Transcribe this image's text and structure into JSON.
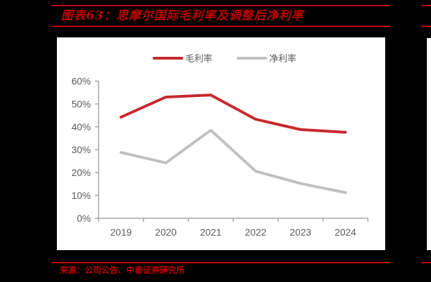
{
  "header": {
    "title": "图表63：思摩尔国际毛利率及调整后净利率"
  },
  "footer": {
    "source": "来源：公司公告、中泰证券研究所"
  },
  "colors": {
    "accent_red": "#C00000",
    "series_gross": "#C8282D",
    "series_net": "#C0C0C0",
    "axis": "#A6A6A6",
    "text": "#595959"
  },
  "chart_data": {
    "type": "line",
    "title": "思摩尔国际毛利率及调整后净利率",
    "xlabel": "",
    "ylabel": "",
    "categories": [
      "2019",
      "2020",
      "2021",
      "2022",
      "2023",
      "2024"
    ],
    "series": [
      {
        "name": "毛利率",
        "color": "#C8282D",
        "values": [
          44.2,
          53.0,
          53.9,
          43.3,
          38.8,
          37.6
        ]
      },
      {
        "name": "净利率",
        "color": "#C0C0C0",
        "values": [
          28.8,
          24.2,
          38.5,
          20.6,
          15.2,
          11.2
        ]
      }
    ],
    "ylim": [
      0,
      60
    ],
    "yticks": [
      "0%",
      "10%",
      "20%",
      "30%",
      "40%",
      "50%",
      "60%"
    ],
    "legend_position": "top",
    "grid": false
  }
}
